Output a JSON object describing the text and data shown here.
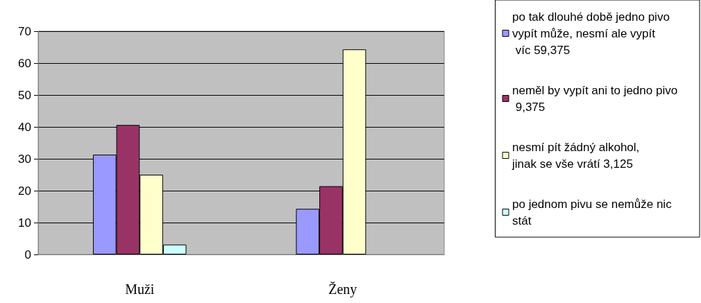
{
  "chart_data": {
    "type": "bar",
    "categories": [
      "Muži",
      "Ženy"
    ],
    "series": [
      {
        "name": "po tak dlouhé době jedno pivo vypít může, nesmí ale vypít víc 59,375",
        "color": "#9999ff",
        "values": [
          31.3,
          14.3
        ]
      },
      {
        "name": "neměl by vypít ani to jedno pivo 9,375",
        "color": "#993366",
        "values": [
          40.6,
          21.4
        ]
      },
      {
        "name": "nesmí pít žádný alkohol, jinak se vše vrátí 3,125",
        "color": "#ffffcc",
        "values": [
          25,
          64.3
        ]
      },
      {
        "name": "po jednom pivu se nemůže nic stát",
        "color": "#ccffff",
        "values": [
          3.1,
          null
        ]
      }
    ],
    "ylim": [
      0,
      70
    ],
    "yticks": [
      0,
      10,
      20,
      30,
      40,
      50,
      60,
      70
    ],
    "grid": "y",
    "legend": "right"
  }
}
